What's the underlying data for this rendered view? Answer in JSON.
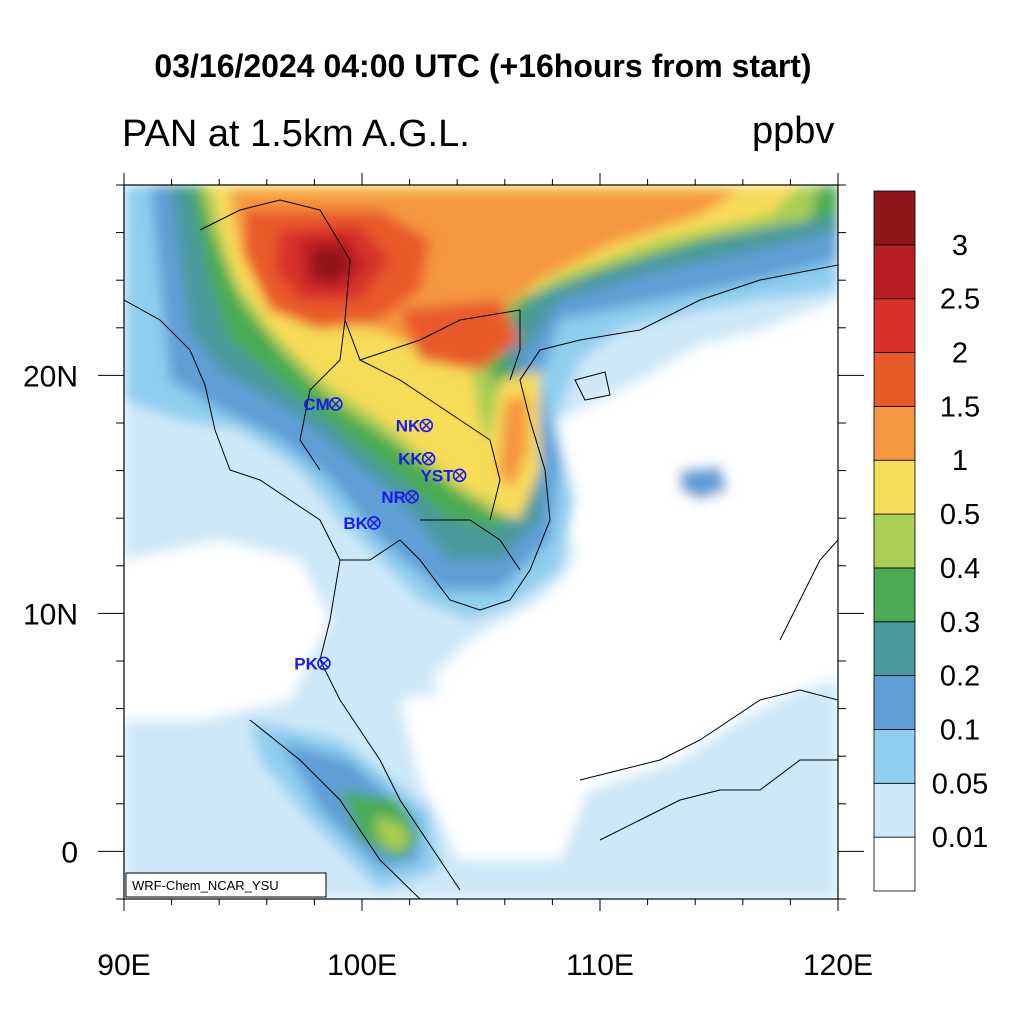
{
  "title": "03/16/2024 04:00 UTC (+16hours from start)",
  "variable_label": "PAN at 1.5km A.G.L.",
  "unit_label": "ppbv",
  "credit": "WRF-Chem_NCAR_YSU",
  "x_axis": {
    "ticks": [
      "90E",
      "100E",
      "110E",
      "120E"
    ],
    "lon_values": [
      90,
      100,
      110,
      120
    ]
  },
  "y_axis": {
    "ticks": [
      "20N",
      "10N",
      "0"
    ],
    "lat_values": [
      20,
      10,
      0
    ]
  },
  "extent": {
    "lon": [
      90,
      120
    ],
    "lat": [
      -2,
      28
    ]
  },
  "colorbar": {
    "labels": [
      "0.01",
      "0.05",
      "0.1",
      "0.2",
      "0.3",
      "0.4",
      "0.5",
      "1",
      "1.5",
      "2",
      "2.5",
      "3"
    ],
    "colors": [
      "#ffffff",
      "#cde8f8",
      "#90ceef",
      "#5e9fd6",
      "#4a9a9c",
      "#4aab52",
      "#a8ce54",
      "#f7dc58",
      "#f59640",
      "#e95a2a",
      "#d8302a",
      "#b81e22",
      "#8e1619"
    ]
  },
  "stations": [
    {
      "code": "CM",
      "lon": 98.9,
      "lat": 18.8
    },
    {
      "code": "NK",
      "lon": 102.7,
      "lat": 17.9
    },
    {
      "code": "KK",
      "lon": 102.8,
      "lat": 16.5
    },
    {
      "code": "YST",
      "lon": 104.1,
      "lat": 15.8
    },
    {
      "code": "NR",
      "lon": 102.1,
      "lat": 14.9
    },
    {
      "code": "BK",
      "lon": 100.5,
      "lat": 13.8
    },
    {
      "code": "PK",
      "lon": 98.4,
      "lat": 7.9
    }
  ]
}
